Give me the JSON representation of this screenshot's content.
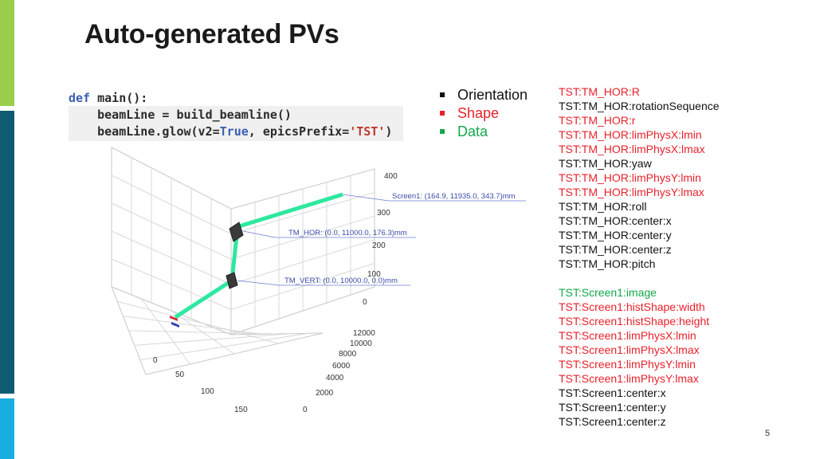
{
  "slide": {
    "title": "Auto-generated PVs",
    "page_number": "5",
    "accent_colors": [
      "#9acd4a",
      "#0f5b73",
      "#19aee0"
    ]
  },
  "code": {
    "line1_kw": "def",
    "line1_rest": " main():",
    "line2": "    beamLine = build_beamline()",
    "line3_a": "    beamLine.glow(v2=",
    "line3_kw": "True",
    "line3_b": ", epicsPrefix=",
    "line3_str": "'TST'",
    "line3_c": ")"
  },
  "bullets": [
    {
      "label": "Orientation",
      "color": "#111111"
    },
    {
      "label": "Shape",
      "color": "#e8212a"
    },
    {
      "label": "Data",
      "color": "#13a84a"
    }
  ],
  "pv_group_1": [
    {
      "name": "TST:TM_HOR:R",
      "color": "red"
    },
    {
      "name": "TST:TM_HOR:rotationSequence",
      "color": "black"
    },
    {
      "name": "TST:TM_HOR:r",
      "color": "red"
    },
    {
      "name": "TST:TM_HOR:limPhysX:lmin",
      "color": "red"
    },
    {
      "name": "TST:TM_HOR:limPhysX:lmax",
      "color": "red"
    },
    {
      "name": "TST:TM_HOR:yaw",
      "color": "black"
    },
    {
      "name": "TST:TM_HOR:limPhysY:lmin",
      "color": "red"
    },
    {
      "name": "TST:TM_HOR:limPhysY:lmax",
      "color": "red"
    },
    {
      "name": "TST:TM_HOR:roll",
      "color": "black"
    },
    {
      "name": "TST:TM_HOR:center:x",
      "color": "black"
    },
    {
      "name": "TST:TM_HOR:center:y",
      "color": "black"
    },
    {
      "name": "TST:TM_HOR:center:z",
      "color": "black"
    },
    {
      "name": "TST:TM_HOR:pitch",
      "color": "black"
    }
  ],
  "pv_group_2": [
    {
      "name": "TST:Screen1:image",
      "color": "green"
    },
    {
      "name": "TST:Screen1:histShape:width",
      "color": "red"
    },
    {
      "name": "TST:Screen1:histShape:height",
      "color": "red"
    },
    {
      "name": "TST:Screen1:limPhysX:lmin",
      "color": "red"
    },
    {
      "name": "TST:Screen1:limPhysX:lmax",
      "color": "red"
    },
    {
      "name": "TST:Screen1:limPhysY:lmin",
      "color": "red"
    },
    {
      "name": "TST:Screen1:limPhysY:lmax",
      "color": "red"
    },
    {
      "name": "TST:Screen1:center:x",
      "color": "black"
    },
    {
      "name": "TST:Screen1:center:y",
      "color": "black"
    },
    {
      "name": "TST:Screen1:center:z",
      "color": "black"
    }
  ],
  "plot3d": {
    "z_ticks": [
      "400",
      "300",
      "200",
      "100",
      "0"
    ],
    "depth_ticks": [
      "12000",
      "10000",
      "8000",
      "6000",
      "4000",
      "2000",
      "0"
    ],
    "x_ticks": [
      "0",
      "50",
      "100",
      "150"
    ],
    "annotations": {
      "screen": "Screen1: (164.9, 11935.0, 343.7)mm",
      "tm_hor": "TM_HOR: (0.0, 11000.0, 176.3)mm",
      "tm_vert": "TM_VERT: (0.0, 10000.0, 0.0)mm"
    },
    "beam_color": "#2ee8a0"
  }
}
